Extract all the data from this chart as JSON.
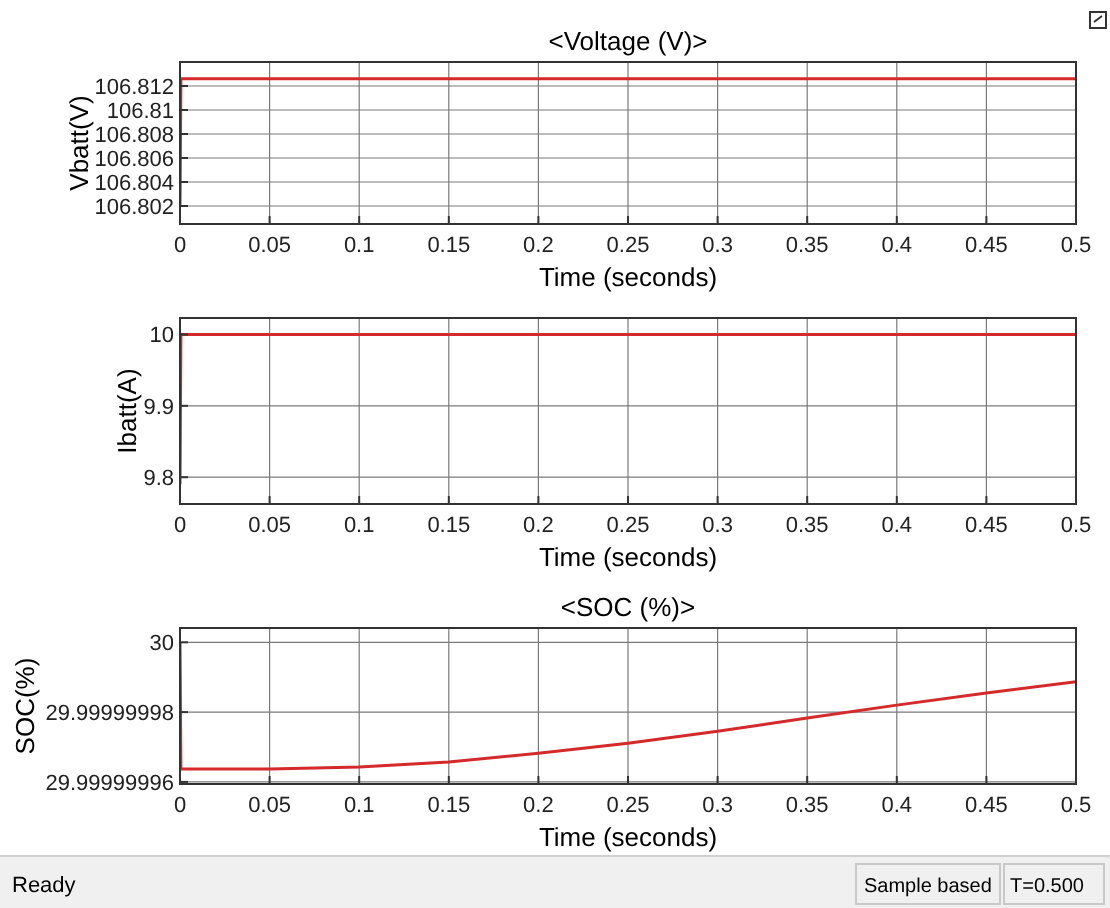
{
  "chart_data": [
    {
      "type": "line",
      "title": "<Voltage (V)>",
      "xlabel": "Time (seconds)",
      "ylabel": "Vbatt(V)",
      "grid": true,
      "xlim": [
        0,
        0.5
      ],
      "xticks": [
        0,
        0.05,
        0.1,
        0.15,
        0.2,
        0.25,
        0.3,
        0.35,
        0.4,
        0.45,
        0.5
      ],
      "ylim": [
        106.8005,
        106.814
      ],
      "yticks": [
        106.802,
        106.804,
        106.806,
        106.808,
        106.81,
        106.812
      ],
      "series": [
        {
          "color": "#d42a2a",
          "x": [
            0,
            0.0005,
            0.5
          ],
          "values": [
            106.802,
            106.8126,
            106.8126
          ]
        }
      ]
    },
    {
      "type": "line",
      "xlabel": "Time (seconds)",
      "ylabel": "Ibatt(A)",
      "grid": true,
      "xlim": [
        0,
        0.5
      ],
      "xticks": [
        0,
        0.05,
        0.1,
        0.15,
        0.2,
        0.25,
        0.3,
        0.35,
        0.4,
        0.45,
        0.5
      ],
      "ylim": [
        9.7625,
        10.023
      ],
      "yticks": [
        9.8,
        9.9,
        10
      ],
      "series": [
        {
          "color": "#d42a2a",
          "x": [
            0,
            0.0005,
            0.5
          ],
          "values": [
            9.79,
            10,
            10
          ]
        }
      ]
    },
    {
      "type": "line",
      "title": "<SOC (%)>",
      "xlabel": "Time (seconds)",
      "ylabel": "SOC(%)",
      "grid": true,
      "xlim": [
        0,
        0.5
      ],
      "xticks": [
        0,
        0.05,
        0.1,
        0.15,
        0.2,
        0.25,
        0.3,
        0.35,
        0.4,
        0.45,
        0.5
      ],
      "ylim": [
        29.9999999594,
        30.0000000041
      ],
      "yticks": [
        29.99999996,
        29.99999998,
        30
      ],
      "annotations": [
        "Ready",
        "Sample based",
        "T=0.500"
      ],
      "series": [
        {
          "color": "#d42a2a",
          "x": [
            0,
            0.0005,
            0.05,
            0.1,
            0.15,
            0.2,
            0.25,
            0.3,
            0.35,
            0.4,
            0.45,
            0.5
          ],
          "values": [
            30,
            29.9999999637,
            29.9999999637,
            29.9999999643,
            29.9999999657,
            29.9999999682,
            29.9999999711,
            29.9999999745,
            29.9999999783,
            29.999999982,
            29.9999999855,
            29.9999999887
          ]
        }
      ]
    }
  ]
}
